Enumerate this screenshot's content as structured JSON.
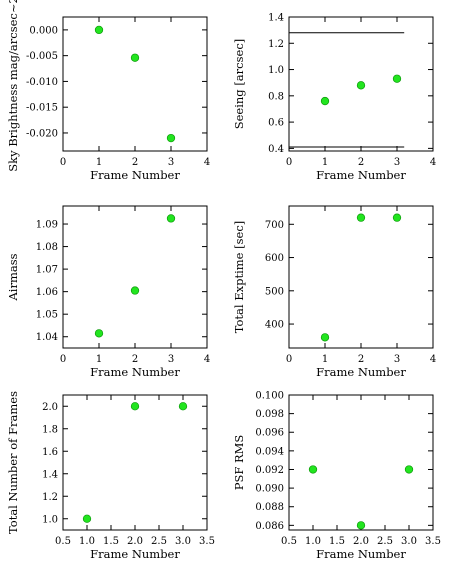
{
  "figure": {
    "marker_color": "#22e51f",
    "marker_edge_color": "#0f9a0d",
    "axis_color": "#000000",
    "background": "#ffffff"
  },
  "chart_data": [
    {
      "type": "scatter",
      "xlabel": "Frame Number",
      "ylabel": "Sky Brightness mag/arcsec~2",
      "xlim": [
        0,
        4
      ],
      "ylim": [
        -0.0235,
        0.0025
      ],
      "xticks": [
        "0",
        "1",
        "2",
        "3",
        "4"
      ],
      "xtick_values": [
        0,
        1,
        2,
        3,
        4
      ],
      "yticks": [
        "0.000",
        "-0.005",
        "-0.010",
        "-0.015",
        "-0.020"
      ],
      "ytick_values": [
        0.0,
        -0.005,
        -0.01,
        -0.015,
        -0.02
      ],
      "x": [
        1,
        2,
        3
      ],
      "y": [
        0.0,
        -0.0054,
        -0.021
      ],
      "grid": false
    },
    {
      "type": "scatter",
      "xlabel": "Frame Number",
      "ylabel": "Seeing [arcsec]",
      "xlim": [
        0,
        4
      ],
      "ylim": [
        0.38,
        1.4
      ],
      "xticks": [
        "0",
        "1",
        "2",
        "3",
        "4"
      ],
      "xtick_values": [
        0,
        1,
        2,
        3,
        4
      ],
      "yticks": [
        "0.4",
        "0.6",
        "0.8",
        "1.0",
        "1.2",
        "1.4"
      ],
      "ytick_values": [
        0.4,
        0.6,
        0.8,
        1.0,
        1.2,
        1.4
      ],
      "x": [
        1,
        2,
        3
      ],
      "y": [
        0.76,
        0.88,
        0.93
      ],
      "hlines": [
        {
          "y": 1.28,
          "x_from": 0,
          "x_to": 3.2
        },
        {
          "y": 0.41,
          "x_from": 0,
          "x_to": 3.2
        }
      ],
      "grid": false
    },
    {
      "type": "scatter",
      "xlabel": "Frame Number",
      "ylabel": "Airmass",
      "xlim": [
        0,
        4
      ],
      "ylim": [
        1.035,
        1.098
      ],
      "xticks": [
        "0",
        "1",
        "2",
        "3",
        "4"
      ],
      "xtick_values": [
        0,
        1,
        2,
        3,
        4
      ],
      "yticks": [
        "1.04",
        "1.05",
        "1.06",
        "1.07",
        "1.08",
        "1.09"
      ],
      "ytick_values": [
        1.04,
        1.05,
        1.06,
        1.07,
        1.08,
        1.09
      ],
      "x": [
        1,
        2,
        3
      ],
      "y": [
        1.0415,
        1.0605,
        1.0925
      ],
      "grid": false
    },
    {
      "type": "scatter",
      "xlabel": "Frame Number",
      "ylabel": "Total Exptime [sec]",
      "xlim": [
        0,
        4
      ],
      "ylim": [
        328,
        755
      ],
      "xticks": [
        "0",
        "1",
        "2",
        "3",
        "4"
      ],
      "xtick_values": [
        0,
        1,
        2,
        3,
        4
      ],
      "yticks": [
        "400",
        "500",
        "600",
        "700"
      ],
      "ytick_values": [
        400,
        500,
        600,
        700
      ],
      "x": [
        1,
        2,
        3
      ],
      "y": [
        360,
        720,
        720
      ],
      "grid": false
    },
    {
      "type": "scatter",
      "xlabel": "Frame Number",
      "ylabel": "Total Number of Frames",
      "xlim": [
        0.5,
        3.5
      ],
      "ylim": [
        0.9,
        2.1
      ],
      "xticks": [
        "0.5",
        "1.0",
        "1.5",
        "2.0",
        "2.5",
        "3.0",
        "3.5"
      ],
      "xtick_values": [
        0.5,
        1.0,
        1.5,
        2.0,
        2.5,
        3.0,
        3.5
      ],
      "yticks": [
        "1.0",
        "1.2",
        "1.4",
        "1.6",
        "1.8",
        "2.0"
      ],
      "ytick_values": [
        1.0,
        1.2,
        1.4,
        1.6,
        1.8,
        2.0
      ],
      "x": [
        1,
        2,
        3
      ],
      "y": [
        1.0,
        2.0,
        2.0
      ],
      "grid": false
    },
    {
      "type": "scatter",
      "xlabel": "Frame Number",
      "ylabel": "PSF RMS",
      "xlim": [
        0.5,
        3.5
      ],
      "ylim": [
        0.0855,
        0.1
      ],
      "xticks": [
        "0.5",
        "1.0",
        "1.5",
        "2.0",
        "2.5",
        "3.0",
        "3.5"
      ],
      "xtick_values": [
        0.5,
        1.0,
        1.5,
        2.0,
        2.5,
        3.0,
        3.5
      ],
      "yticks": [
        "0.086",
        "0.088",
        "0.090",
        "0.092",
        "0.094",
        "0.096",
        "0.098",
        "0.100"
      ],
      "ytick_values": [
        0.086,
        0.088,
        0.09,
        0.092,
        0.094,
        0.096,
        0.098,
        0.1
      ],
      "x": [
        1,
        2,
        3
      ],
      "y": [
        0.092,
        0.086,
        0.092
      ],
      "grid": false
    }
  ]
}
